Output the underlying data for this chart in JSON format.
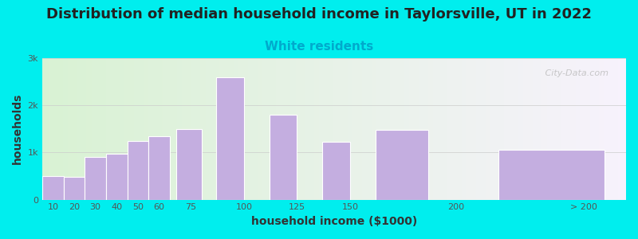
{
  "title": "Distribution of median household income in Taylorsville, UT in 2022",
  "subtitle": "White residents",
  "xlabel": "household income ($1000)",
  "ylabel": "households",
  "background_outer": "#00EEEE",
  "bar_color": "#c4aee0",
  "bar_edge_color": "#ffffff",
  "values": [
    500,
    475,
    900,
    970,
    1250,
    1350,
    1500,
    2600,
    1800,
    1220,
    1480,
    1050
  ],
  "bar_lefts": [
    5,
    15,
    25,
    35,
    45,
    55,
    68,
    87,
    112,
    137,
    162,
    220
  ],
  "bar_widths": [
    10,
    10,
    10,
    10,
    10,
    10,
    12,
    13,
    13,
    13,
    25,
    50
  ],
  "xtick_positions": [
    10,
    20,
    30,
    40,
    50,
    60,
    75,
    100,
    125,
    150,
    200,
    260
  ],
  "xtick_labels": [
    "10",
    "20",
    "30",
    "40",
    "50",
    "60",
    "75",
    "100",
    "125",
    "150",
    "200",
    "> 200"
  ],
  "xlim": [
    5,
    280
  ],
  "ylim": [
    0,
    3000
  ],
  "yticks": [
    0,
    1000,
    2000,
    3000
  ],
  "ytick_labels": [
    "0",
    "1k",
    "2k",
    "3k"
  ],
  "title_fontsize": 13,
  "subtitle_fontsize": 11,
  "subtitle_color": "#00AACC",
  "axis_label_fontsize": 10,
  "watermark": "   City-Data.com"
}
